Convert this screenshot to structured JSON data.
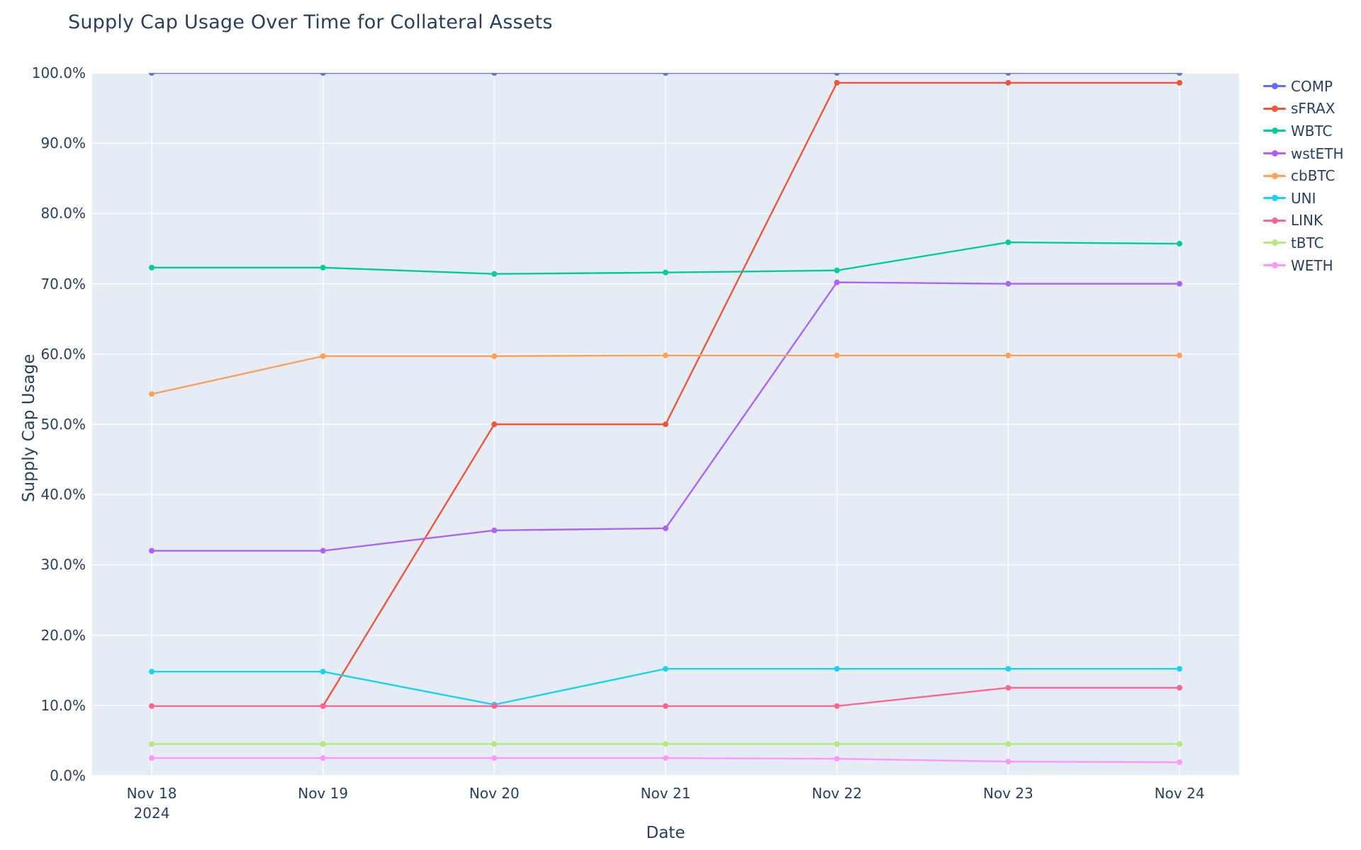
{
  "title": "Supply Cap Usage Over Time for Collateral Assets",
  "x_axis": {
    "title": "Date",
    "tick_labels": [
      "Nov 18",
      "Nov 19",
      "Nov 20",
      "Nov 21",
      "Nov 22",
      "Nov 23",
      "Nov 24"
    ],
    "first_tick_year": "2024"
  },
  "y_axis": {
    "title": "Supply Cap Usage",
    "tick_labels": [
      "0.0%",
      "10.0%",
      "20.0%",
      "30.0%",
      "40.0%",
      "50.0%",
      "60.0%",
      "70.0%",
      "80.0%",
      "90.0%",
      "100.0%"
    ],
    "tick_values": [
      0,
      10,
      20,
      30,
      40,
      50,
      60,
      70,
      80,
      90,
      100
    ]
  },
  "legend": {
    "entries": [
      "COMP",
      "sFRAX",
      "WBTC",
      "wstETH",
      "cbBTC",
      "UNI",
      "LINK",
      "tBTC",
      "WETH"
    ]
  },
  "colors": {
    "font": "#2a3f5f",
    "plot_background": "#E5ECF6",
    "paper_background": "#ffffff",
    "gridline": "#ffffff"
  },
  "chart_data": {
    "type": "line",
    "title": "Supply Cap Usage Over Time for Collateral Assets",
    "xlabel": "Date",
    "ylabel": "Supply Cap Usage",
    "x": [
      "Nov 18 2024",
      "Nov 19 2024",
      "Nov 20 2024",
      "Nov 21 2024",
      "Nov 22 2024",
      "Nov 23 2024",
      "Nov 24 2024"
    ],
    "ylim": [
      0,
      100
    ],
    "y_unit": "percent",
    "grid": true,
    "legend_position": "right",
    "markers": true,
    "series": [
      {
        "name": "COMP",
        "color": "#636EFA",
        "values": [
          100,
          100,
          100,
          100,
          100,
          100,
          100
        ]
      },
      {
        "name": "sFRAX",
        "color": "#EF553B",
        "values": [
          null,
          9.9,
          50.0,
          50.0,
          98.6,
          98.6,
          98.6
        ]
      },
      {
        "name": "WBTC",
        "color": "#00CC96",
        "values": [
          72.3,
          72.3,
          71.4,
          71.6,
          71.9,
          75.9,
          75.7
        ]
      },
      {
        "name": "wstETH",
        "color": "#AB63FA",
        "values": [
          32.0,
          32.0,
          34.9,
          35.2,
          70.2,
          70.0,
          70.0
        ]
      },
      {
        "name": "cbBTC",
        "color": "#FFA15A",
        "values": [
          54.3,
          59.7,
          59.7,
          59.8,
          59.8,
          59.8,
          59.8
        ]
      },
      {
        "name": "UNI",
        "color": "#19D3F3",
        "values": [
          14.8,
          14.8,
          10.1,
          15.2,
          15.2,
          15.2,
          15.2
        ]
      },
      {
        "name": "LINK",
        "color": "#FF6692",
        "values": [
          9.9,
          9.9,
          9.9,
          9.9,
          9.9,
          12.5,
          12.5
        ]
      },
      {
        "name": "tBTC",
        "color": "#B6E880",
        "values": [
          4.5,
          4.5,
          4.5,
          4.5,
          4.5,
          4.5,
          4.5
        ]
      },
      {
        "name": "WETH",
        "color": "#FF97FF",
        "values": [
          2.5,
          2.5,
          2.5,
          2.5,
          2.4,
          2.0,
          1.9
        ]
      }
    ]
  }
}
